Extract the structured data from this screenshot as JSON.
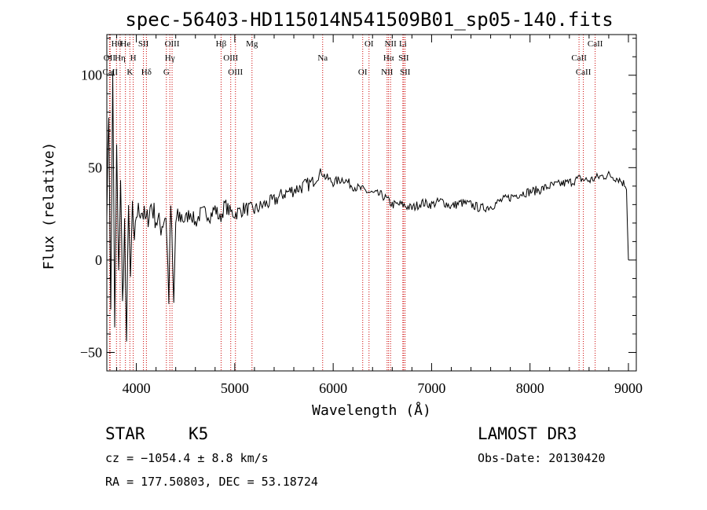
{
  "chart_data": {
    "type": "line",
    "title": "spec-56403-HD115014N541509B01_sp05-140.fits",
    "xlabel": "Wavelength (Å)",
    "ylabel": "Flux (relative)",
    "xlim": [
      3700,
      9080
    ],
    "ylim": [
      -60,
      122
    ],
    "xticks": [
      4000,
      5000,
      6000,
      7000,
      8000,
      9000
    ],
    "yticks": [
      -50,
      0,
      50,
      100
    ],
    "series": [
      {
        "name": "spectrum",
        "x": [
          3700,
          3720,
          3740,
          3760,
          3780,
          3800,
          3820,
          3840,
          3860,
          3880,
          3900,
          3920,
          3940,
          3960,
          3980,
          4000,
          4050,
          4100,
          4150,
          4200,
          4250,
          4300,
          4330,
          4350,
          4380,
          4400,
          4450,
          4500,
          4550,
          4600,
          4650,
          4700,
          4750,
          4800,
          4850,
          4900,
          4950,
          5000,
          5100,
          5200,
          5300,
          5400,
          5500,
          5600,
          5700,
          5800,
          5880,
          5920,
          6000,
          6100,
          6200,
          6300,
          6400,
          6500,
          6560,
          6600,
          6700,
          6800,
          6900,
          7000,
          7100,
          7200,
          7300,
          7400,
          7500,
          7600,
          7700,
          7800,
          7900,
          8000,
          8100,
          8200,
          8300,
          8400,
          8500,
          8600,
          8700,
          8800,
          8900,
          8980,
          9000
        ],
        "y": [
          30,
          80,
          -30,
          105,
          -40,
          60,
          -10,
          45,
          -25,
          20,
          -50,
          35,
          -15,
          30,
          5,
          25,
          28,
          20,
          30,
          22,
          18,
          25,
          -20,
          30,
          -25,
          20,
          24,
          22,
          26,
          20,
          25,
          26,
          24,
          28,
          22,
          30,
          26,
          25,
          28,
          27,
          30,
          32,
          36,
          38,
          40,
          42,
          48,
          45,
          42,
          44,
          40,
          38,
          36,
          35,
          32,
          30,
          30,
          28,
          31,
          30,
          32,
          29,
          31,
          30,
          28,
          29,
          32,
          34,
          36,
          37,
          38,
          40,
          41,
          42,
          44,
          43,
          45,
          46,
          44,
          40,
          0
        ]
      }
    ],
    "lines": [
      {
        "name": "Hθ",
        "wl": 3798
      },
      {
        "name": "OII",
        "wl": 3727
      },
      {
        "name": "CaII",
        "wl": 3734
      },
      {
        "name": "He",
        "wl": 3889
      },
      {
        "name": "Hη",
        "wl": 3835
      },
      {
        "name": "K",
        "wl": 3934
      },
      {
        "name": "SII",
        "wl": 4072
      },
      {
        "name": "H",
        "wl": 3968
      },
      {
        "name": "Hδ",
        "wl": 4102
      },
      {
        "name": "OIII",
        "wl": 4363
      },
      {
        "name": "Hγ",
        "wl": 4340
      },
      {
        "name": "G",
        "wl": 4305
      },
      {
        "name": "Hβ",
        "wl": 4861
      },
      {
        "name": "OIII",
        "wl": 4959
      },
      {
        "name": "OIII",
        "wl": 5007
      },
      {
        "name": "Mg",
        "wl": 5175
      },
      {
        "name": "Na",
        "wl": 5893
      },
      {
        "name": "OI",
        "wl": 6300
      },
      {
        "name": "OI",
        "wl": 6364
      },
      {
        "name": "Hα",
        "wl": 6563
      },
      {
        "name": "NII",
        "wl": 6548
      },
      {
        "name": "NII",
        "wl": 6583
      },
      {
        "name": "SII",
        "wl": 6716
      },
      {
        "name": "SII",
        "wl": 6731
      },
      {
        "name": "Li",
        "wl": 6708
      },
      {
        "name": "CaII",
        "wl": 8498
      },
      {
        "name": "CaII",
        "wl": 8542
      },
      {
        "name": "CaII",
        "wl": 8662
      }
    ]
  },
  "footer": {
    "object_class": "STAR",
    "subclass": "K5",
    "survey": "LAMOST DR3",
    "velocity": "cz = −1054.4 ± 8.8 km/s",
    "obs_date": "Obs-Date: 20130420",
    "coords": "RA = 177.50803, DEC =  53.18724"
  },
  "colors": {
    "spectrum": "#000000",
    "line_marker": "#cc0000",
    "axes": "#000000"
  }
}
